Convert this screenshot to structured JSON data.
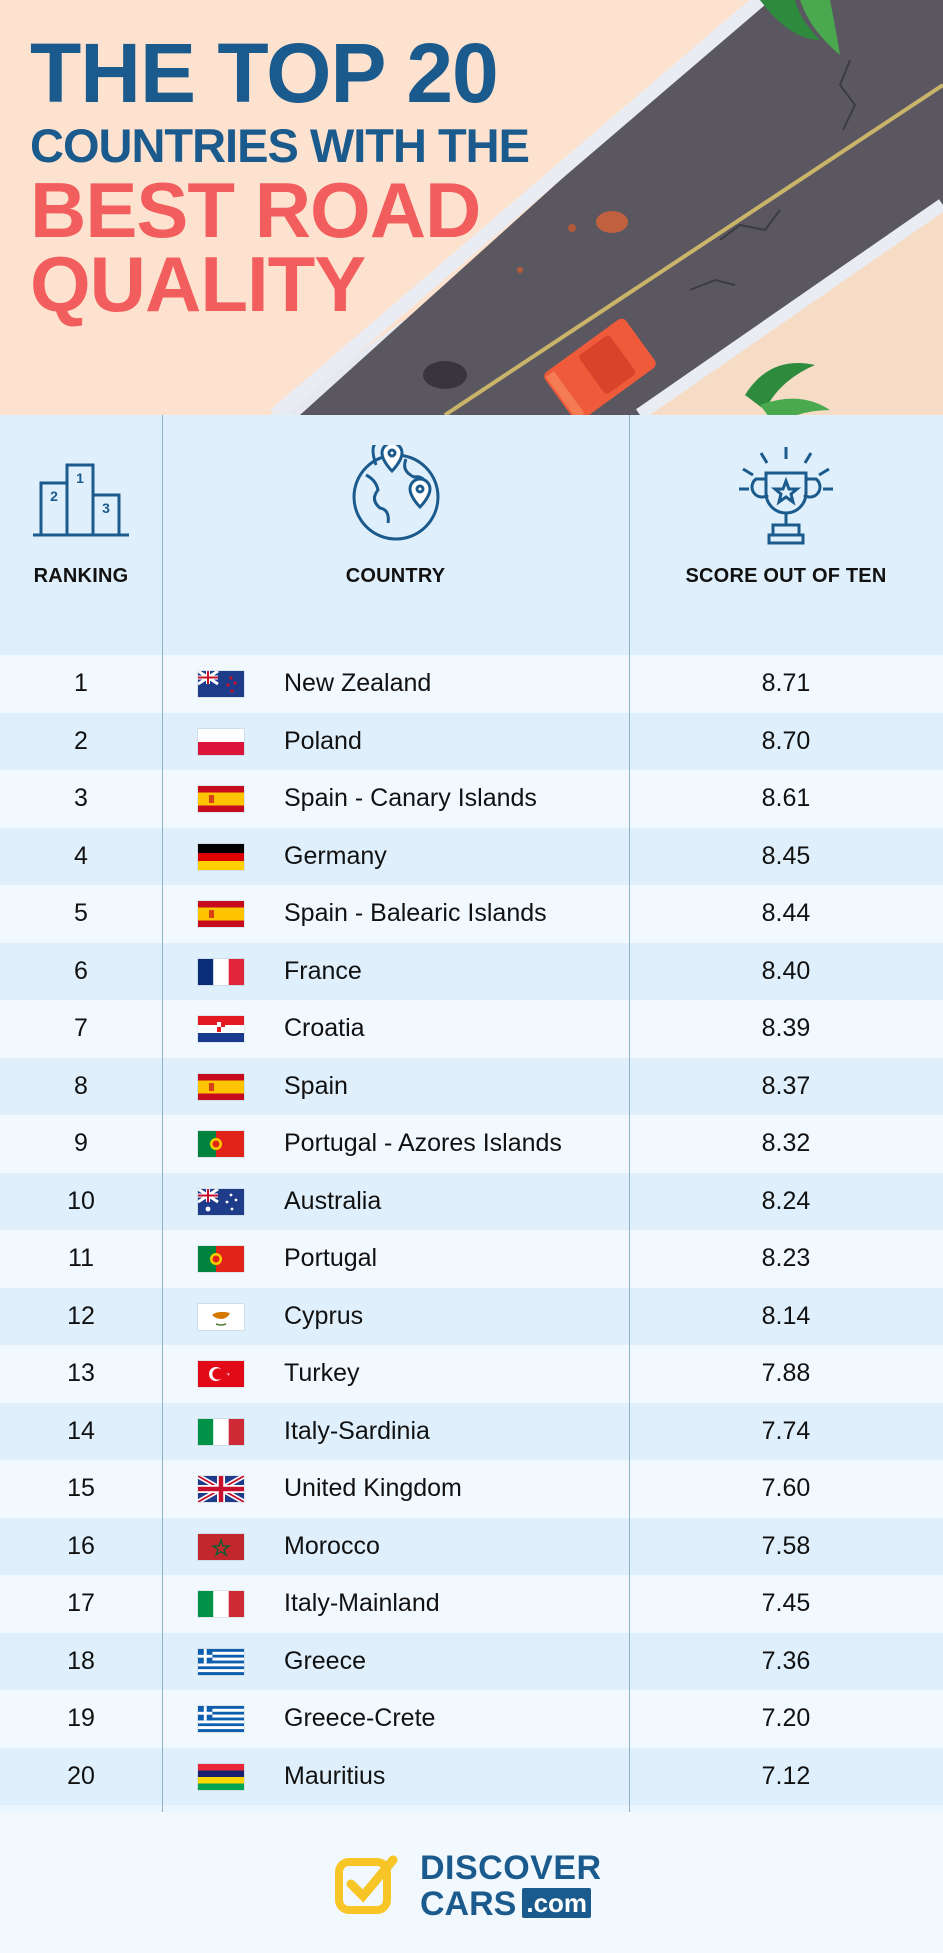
{
  "header": {
    "title_line1": "THE TOP 20",
    "title_line2": "COUNTRIES WITH THE",
    "title_line3": "BEST ROAD",
    "title_line4": "QUALITY"
  },
  "table": {
    "columns": {
      "ranking": "RANKING",
      "country": "COUNTRY",
      "score": "SCORE OUT OF TEN"
    },
    "rows": [
      {
        "rank": "1",
        "country": "New Zealand",
        "score": "8.71",
        "flag": "nz"
      },
      {
        "rank": "2",
        "country": "Poland",
        "score": "8.70",
        "flag": "pl"
      },
      {
        "rank": "3",
        "country": "Spain - Canary Islands",
        "score": "8.61",
        "flag": "es"
      },
      {
        "rank": "4",
        "country": "Germany",
        "score": "8.45",
        "flag": "de"
      },
      {
        "rank": "5",
        "country": "Spain - Balearic Islands",
        "score": "8.44",
        "flag": "es"
      },
      {
        "rank": "6",
        "country": "France",
        "score": "8.40",
        "flag": "fr"
      },
      {
        "rank": "7",
        "country": "Croatia",
        "score": "8.39",
        "flag": "hr"
      },
      {
        "rank": "8",
        "country": "Spain",
        "score": "8.37",
        "flag": "es"
      },
      {
        "rank": "9",
        "country": "Portugal - Azores Islands",
        "score": "8.32",
        "flag": "pt"
      },
      {
        "rank": "10",
        "country": "Australia",
        "score": "8.24",
        "flag": "au"
      },
      {
        "rank": "11",
        "country": "Portugal",
        "score": "8.23",
        "flag": "pt"
      },
      {
        "rank": "12",
        "country": "Cyprus",
        "score": "8.14",
        "flag": "cy"
      },
      {
        "rank": "13",
        "country": "Turkey",
        "score": "7.88",
        "flag": "tr"
      },
      {
        "rank": "14",
        "country": "Italy-Sardinia",
        "score": "7.74",
        "flag": "it"
      },
      {
        "rank": "15",
        "country": "United Kingdom",
        "score": "7.60",
        "flag": "gb"
      },
      {
        "rank": "16",
        "country": "Morocco",
        "score": "7.58",
        "flag": "ma"
      },
      {
        "rank": "17",
        "country": "Italy-Mainland",
        "score": "7.45",
        "flag": "it"
      },
      {
        "rank": "18",
        "country": "Greece",
        "score": "7.36",
        "flag": "gr"
      },
      {
        "rank": "19",
        "country": "Greece-Crete",
        "score": "7.20",
        "flag": "gr"
      },
      {
        "rank": "20",
        "country": "Mauritius",
        "score": "7.12",
        "flag": "mu"
      }
    ]
  },
  "footer": {
    "logo_line1": "DISCOVER",
    "logo_line2": "CARS",
    "logo_suffix": ".com"
  },
  "colors": {
    "navy": "#1b5a8c",
    "coral": "#f25e5e",
    "header_bg": "#fde3cf",
    "row_light": "#f1f8fe",
    "row_dark": "#dff0fc",
    "logo_yellow": "#f7c626"
  }
}
